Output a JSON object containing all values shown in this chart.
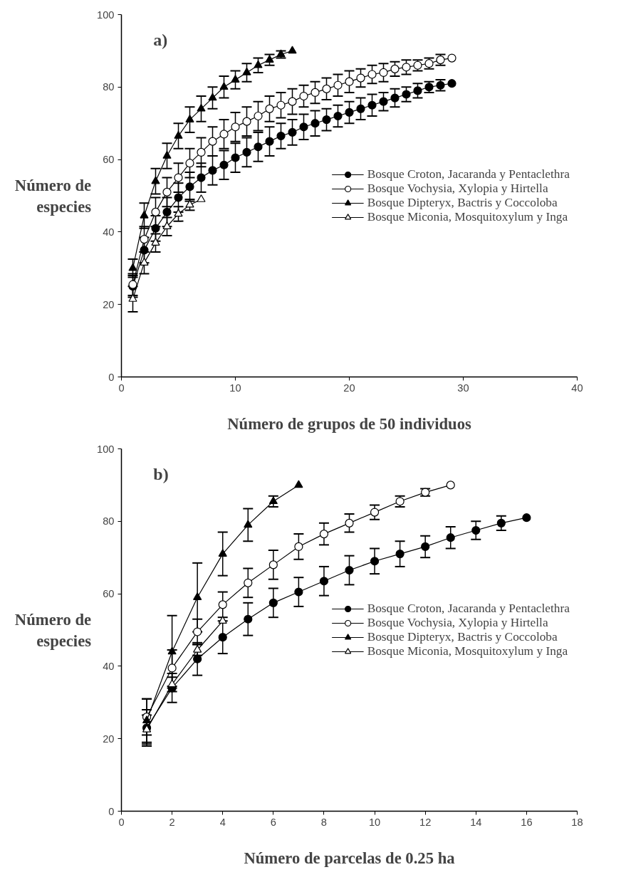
{
  "chart_data": [
    {
      "type": "line",
      "annotations": [
        "a)"
      ],
      "xlabel": "Número de grupos de 50 individuos",
      "ylabel": "Número de\nespecies",
      "xlim": [
        0,
        40
      ],
      "ylim": [
        0,
        100
      ],
      "xticks": [
        0,
        10,
        20,
        30,
        40
      ],
      "yticks": [
        0,
        20,
        40,
        60,
        80,
        100
      ],
      "grid": false,
      "legend": "right",
      "series": [
        {
          "name": "Bosque Croton, Jacaranda y Pentaclethra",
          "color": "#000000",
          "marker": "circle",
          "x": [
            1,
            2,
            3,
            4,
            5,
            6,
            7,
            8,
            9,
            10,
            11,
            12,
            13,
            14,
            15,
            16,
            17,
            18,
            19,
            20,
            21,
            22,
            23,
            24,
            25,
            26,
            27,
            28,
            29
          ],
          "values": [
            25,
            35,
            41,
            45.5,
            49.5,
            52.5,
            55,
            57,
            58.5,
            60.5,
            62,
            63.5,
            65,
            66.5,
            67.5,
            69,
            70,
            71,
            72,
            73,
            74,
            75,
            76,
            77,
            78,
            79,
            80,
            80.5,
            81
          ],
          "errors": [
            3,
            3.5,
            3.5,
            4,
            4,
            4,
            4,
            4,
            4,
            4,
            4,
            4,
            4,
            3.5,
            3.5,
            3.5,
            3.5,
            3,
            3,
            3,
            3,
            3,
            2.5,
            2.5,
            2,
            2,
            1.5,
            1.5,
            null
          ]
        },
        {
          "name": "Bosque Vochysia, Xylopia y Hirtella",
          "color": "#ffffff",
          "marker": "circle",
          "x": [
            1,
            2,
            3,
            4,
            5,
            6,
            7,
            8,
            9,
            10,
            11,
            12,
            13,
            14,
            15,
            16,
            17,
            18,
            19,
            20,
            21,
            22,
            23,
            24,
            25,
            26,
            27,
            28,
            29
          ],
          "values": [
            25.5,
            38,
            45.5,
            51,
            55,
            59,
            62,
            65,
            67,
            69,
            70.5,
            72,
            74,
            75,
            76,
            77.5,
            78.5,
            79.5,
            80.5,
            81.5,
            82.5,
            83.5,
            84,
            85,
            85.5,
            86,
            86.5,
            87.5,
            88
          ],
          "errors": [
            3,
            3.5,
            4,
            4,
            4,
            4,
            4,
            4,
            4,
            4,
            4,
            4,
            3.5,
            3.5,
            3.5,
            3,
            3,
            3,
            3,
            3,
            2.5,
            2.5,
            2.5,
            2,
            2,
            1.5,
            1.5,
            1.5,
            null
          ]
        },
        {
          "name": "Bosque Dipteryx, Bactris y Coccoloba",
          "color": "#000000",
          "marker": "triangle",
          "x": [
            1,
            2,
            3,
            4,
            5,
            6,
            7,
            8,
            9,
            10,
            11,
            12,
            13,
            14,
            15
          ],
          "values": [
            30,
            44.5,
            54,
            61,
            66.5,
            71,
            74,
            77,
            80,
            82,
            84,
            86,
            87.5,
            89,
            90
          ],
          "errors": [
            2.5,
            3.5,
            3.5,
            3.5,
            3.5,
            3.5,
            3.5,
            3,
            3,
            2.5,
            2.5,
            2,
            1.5,
            1,
            null
          ]
        },
        {
          "name": "Bosque Miconia, Mosquitoxylum y Inga",
          "color": "#ffffff",
          "marker": "triangle",
          "x": [
            1,
            2,
            3,
            4,
            5,
            6,
            7
          ],
          "values": [
            21.5,
            31.5,
            37,
            41.5,
            45,
            47.5,
            49
          ],
          "errors": [
            3.5,
            3,
            2.5,
            2.5,
            2,
            1.5,
            null
          ]
        }
      ]
    },
    {
      "type": "line",
      "annotations": [
        "b)"
      ],
      "xlabel": "Número de parcelas de 0.25 ha",
      "ylabel": "Número de\nespecies",
      "xlim": [
        0,
        18
      ],
      "ylim": [
        0,
        100
      ],
      "xticks": [
        0,
        2,
        4,
        6,
        8,
        10,
        12,
        14,
        16,
        18
      ],
      "yticks": [
        0,
        20,
        40,
        60,
        80,
        100
      ],
      "grid": false,
      "legend": "right",
      "series": [
        {
          "name": "Bosque Croton, Jacaranda y Pentaclethra",
          "color": "#000000",
          "marker": "circle",
          "x": [
            1,
            2,
            3,
            4,
            5,
            6,
            7,
            8,
            9,
            10,
            11,
            12,
            13,
            14,
            15,
            16
          ],
          "values": [
            23,
            34,
            42,
            48,
            53,
            57.5,
            60.5,
            63.5,
            66.5,
            69,
            71,
            73,
            75.5,
            77.5,
            79.5,
            81
          ],
          "errors": [
            5,
            4,
            4.5,
            4.5,
            4.5,
            4,
            4,
            4,
            4,
            3.5,
            3.5,
            3,
            3,
            2.5,
            2,
            null
          ]
        },
        {
          "name": "Bosque Vochysia, Xylopia y Hirtella",
          "color": "#ffffff",
          "marker": "circle",
          "x": [
            1,
            2,
            3,
            4,
            5,
            6,
            7,
            8,
            9,
            10,
            11,
            12,
            13
          ],
          "values": [
            26,
            39.5,
            49.5,
            57,
            63,
            68,
            73,
            76.5,
            79.5,
            82.5,
            85.5,
            88,
            90
          ],
          "errors": [
            5,
            5,
            3.5,
            3.5,
            4,
            4,
            3.5,
            3,
            2.5,
            2,
            1.5,
            1,
            null
          ]
        },
        {
          "name": "Bosque Dipteryx, Bactris y Coccoloba",
          "color": "#000000",
          "marker": "triangle",
          "x": [
            1,
            2,
            3,
            4,
            5,
            6,
            7
          ],
          "values": [
            25,
            44,
            59,
            71,
            79,
            85.5,
            90
          ],
          "errors": [
            6,
            10,
            9.5,
            6,
            4.5,
            1.5,
            null
          ]
        },
        {
          "name": "Bosque Miconia, Mosquitoxylum y Inga",
          "color": "#ffffff",
          "marker": "triangle",
          "x": [
            1,
            2,
            3,
            4
          ],
          "values": [
            22.5,
            35,
            44.5,
            52.5
          ],
          "errors": [
            4,
            2,
            1.5,
            null
          ]
        }
      ]
    }
  ]
}
